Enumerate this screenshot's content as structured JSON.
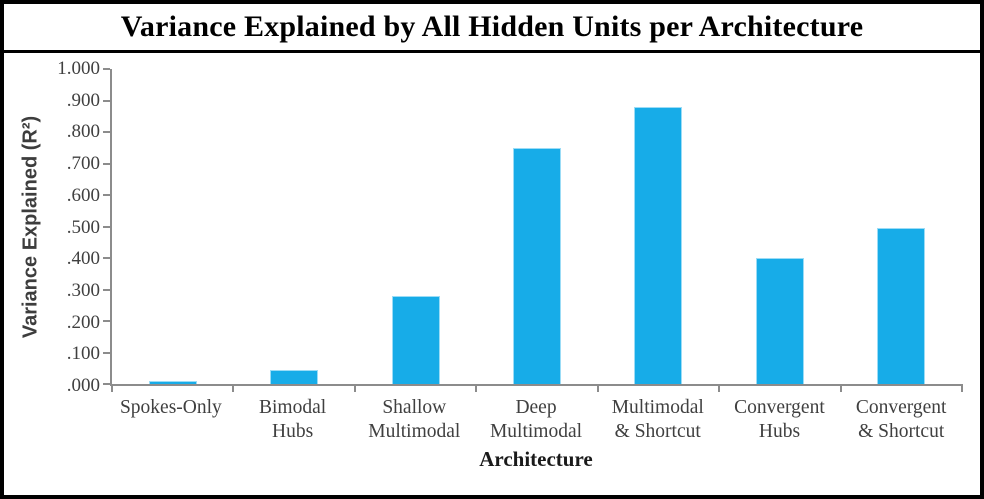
{
  "chart_data": {
    "type": "bar",
    "title": "Variance Explained by All Hidden Units per Architecture",
    "xlabel": "Architecture",
    "ylabel": "Variance Explained (R²)",
    "categories": [
      "Spokes-Only",
      "Bimodal Hubs",
      "Shallow Multimodal",
      "Deep Multimodal",
      "Multimodal & Shortcut",
      "Convergent Hubs",
      "Convergent & Shortcut"
    ],
    "category_lines": [
      [
        "Spokes-Only"
      ],
      [
        "Bimodal",
        "Hubs"
      ],
      [
        "Shallow",
        "Multimodal"
      ],
      [
        "Deep",
        "Multimodal"
      ],
      [
        "Multimodal",
        "& Shortcut"
      ],
      [
        "Convergent",
        "Hubs"
      ],
      [
        "Convergent",
        "& Shortcut"
      ]
    ],
    "values": [
      0.01,
      0.045,
      0.28,
      0.749,
      0.878,
      0.401,
      0.494
    ],
    "ylim": [
      0,
      1.0
    ],
    "y_ticks": [
      1.0,
      0.9,
      0.8,
      0.7,
      0.6,
      0.5,
      0.4,
      0.3,
      0.2,
      0.1,
      0.0
    ],
    "y_tick_labels": [
      "1.000",
      ".900",
      ".800",
      ".700",
      ".600",
      ".500",
      ".400",
      ".300",
      ".200",
      ".100",
      ".000"
    ],
    "grid": false,
    "legend": "none",
    "bar_color": "#17ACE8",
    "axis_color": "#8C8C8C",
    "tick_text_color": "#404040"
  }
}
